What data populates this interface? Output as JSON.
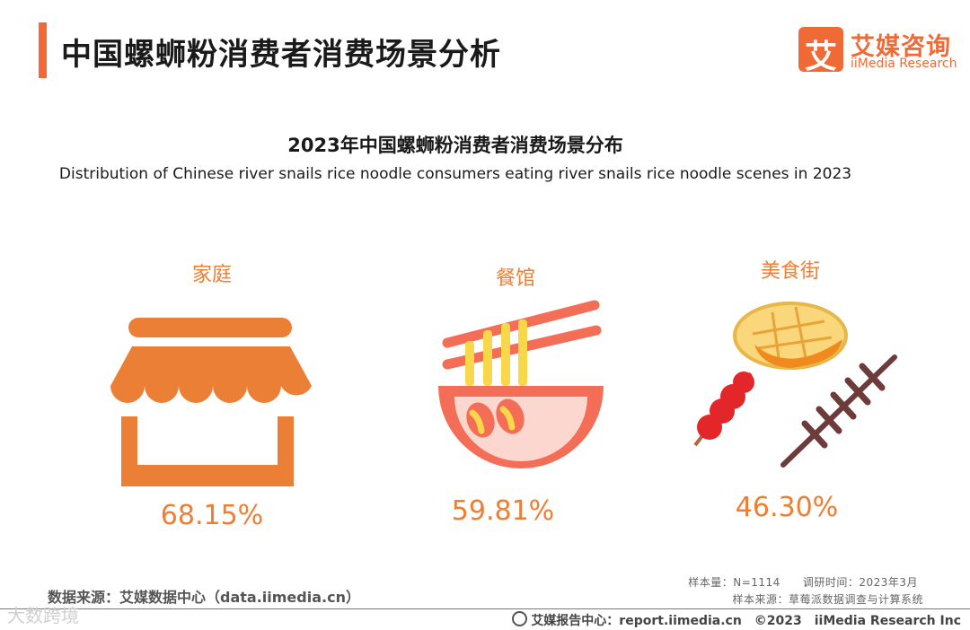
{
  "header": {
    "title": "中国螺蛳粉消费者消费场景分析",
    "logo_mark": "艾",
    "logo_cn": "艾媒咨询",
    "logo_en": "iiMedia Research"
  },
  "chart_data": {
    "type": "table",
    "title": "2023年中国螺蛳粉消费者消费场景分布",
    "subtitle": "Distribution of Chinese river snails rice noodle consumers eating river snails rice noodle scenes in 2023",
    "categories": [
      "家庭",
      "餐馆",
      "美食街"
    ],
    "values": [
      68.15,
      59.81,
      46.3
    ],
    "value_labels": [
      "68.15%",
      "59.81%",
      "46.30%"
    ],
    "icons": [
      "storefront-icon",
      "noodle-bowl-icon",
      "street-food-icon"
    ]
  },
  "footer": {
    "source": "数据来源：艾媒数据中心（data.iimedia.cn）",
    "sample": "样本量：N=1114　　调研时间：2023年3月",
    "method": "样本来源：草莓派数据调查与计算系统",
    "report": "艾媒报告中心：report.iimedia.cn　©2023　iiMedia Research Inc",
    "watermark": "大数跨境"
  },
  "colors": {
    "accent": "#f06a35",
    "value_text": "#ef7d32",
    "store_orange": "#ec7f36",
    "bowl_red": "#f36d57",
    "noodle_yellow": "#f8d84a",
    "candied_red": "#e2262a",
    "skewer_brown": "#6e3b3b"
  }
}
